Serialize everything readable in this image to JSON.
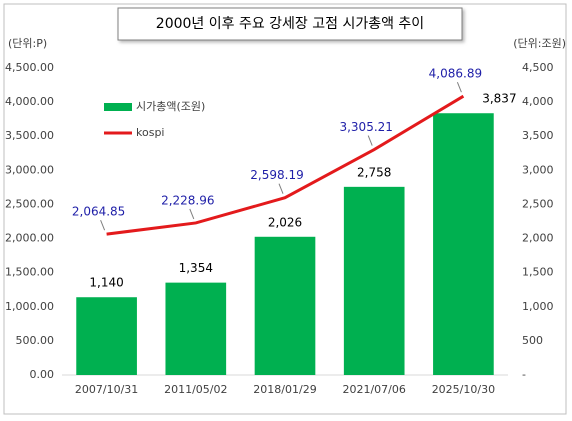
{
  "chart_data": {
    "type": "combo",
    "title": "2000년 이후 주요 강세장 고점 시가총액 추이",
    "y_label": "(단위:P)",
    "y2_label": "(단위:조원)",
    "categories": [
      "2007/10/31",
      "2011/05/02",
      "2018/01/29",
      "2021/07/06",
      "2025/10/30"
    ],
    "series": [
      {
        "name": "시가총액(조원)",
        "type": "bar",
        "axis": "y2",
        "color": "#00b050",
        "values": [
          1140,
          1354,
          2026,
          2758,
          3837
        ],
        "value_labels": [
          "1,140",
          "1,354",
          "2,026",
          "2,758",
          "3,837"
        ],
        "label_color": "#000000"
      },
      {
        "name": "kospi",
        "type": "line",
        "axis": "y",
        "color": "#e31a1c",
        "values": [
          2064.85,
          2228.96,
          2598.19,
          3305.21,
          4086.89
        ],
        "value_labels": [
          "2,064.85",
          "2,228.96",
          "2,598.19",
          "3,305.21",
          "4,086.89"
        ],
        "label_color": "#1f1fa8"
      }
    ],
    "ylim": [
      0,
      4500
    ],
    "yticks": [
      {
        "value": 0,
        "label": "0.00"
      },
      {
        "value": 500,
        "label": "500.00"
      },
      {
        "value": 1000,
        "label": "1,000.00"
      },
      {
        "value": 1500,
        "label": "1,500.00"
      },
      {
        "value": 2000,
        "label": "2,000.00"
      },
      {
        "value": 2500,
        "label": "2,500.00"
      },
      {
        "value": 3000,
        "label": "3,000.00"
      },
      {
        "value": 3500,
        "label": "3,500.00"
      },
      {
        "value": 4000,
        "label": "4,000.00"
      },
      {
        "value": 4500,
        "label": "4,500.00"
      }
    ],
    "y2lim": [
      0,
      4500
    ],
    "y2ticks": [
      {
        "value": 0,
        "label": "-"
      },
      500,
      {
        "value": 1000,
        "label": "1,000"
      },
      {
        "value": 1500,
        "label": "1,500"
      },
      {
        "value": 2000,
        "label": "2,000"
      },
      {
        "value": 2500,
        "label": "2,500"
      },
      {
        "value": 3000,
        "label": "3,000"
      },
      {
        "value": 3500,
        "label": "3,500"
      },
      {
        "value": 4000,
        "label": "4,000"
      },
      {
        "value": 4500,
        "label": "4,500"
      }
    ],
    "grid": false,
    "legend": "upper left"
  }
}
